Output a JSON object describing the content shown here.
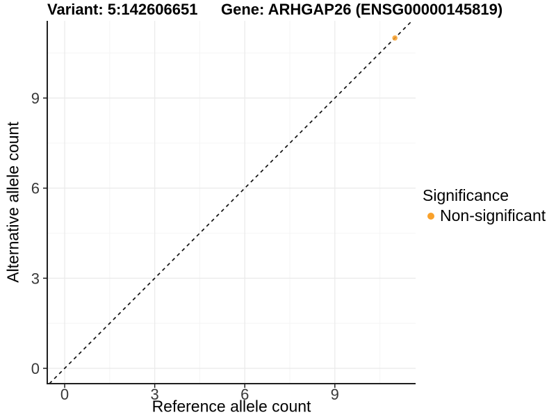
{
  "header": {
    "variant_title": "Variant: 5:142606651",
    "gene_title": "Gene: ARHGAP26 (ENSG00000145819)"
  },
  "chart_data": {
    "type": "scatter",
    "title": "Variant: 5:142606651   Gene: ARHGAP26 (ENSG00000145819)",
    "xlabel": "Reference allele count",
    "ylabel": "Alternative allele count",
    "xlim": [
      -0.58,
      11.69
    ],
    "ylim": [
      -0.51,
      11.57
    ],
    "x_ticks": [
      0,
      3,
      6,
      9
    ],
    "y_ticks": [
      0,
      3,
      6,
      9
    ],
    "x_minor_ticks": [
      1.5,
      4.5,
      7.5,
      10.5
    ],
    "y_minor_ticks": [
      1.5,
      4.5,
      7.5,
      10.5
    ],
    "grid": "major+minor",
    "identity_line": {
      "slope": 1,
      "intercept": 0,
      "style": "dashed",
      "color": "#111111"
    },
    "series": [
      {
        "name": "Non-significant",
        "color": "#F9A12B",
        "point_opacity": 0.85,
        "points": [
          [
            11,
            11
          ]
        ]
      }
    ],
    "legend": {
      "title": "Significance",
      "position": "right",
      "items": [
        {
          "label": "Non-significant",
          "color": "#F9A12B"
        }
      ]
    }
  },
  "colors": {
    "background": "#FFFFFF",
    "grid_major": "#EBEBEB",
    "grid_minor": "#F5F5F5",
    "axis_line": "#1F1F1F",
    "tick_text": "#383838",
    "point_orange": "#F9A12B"
  }
}
